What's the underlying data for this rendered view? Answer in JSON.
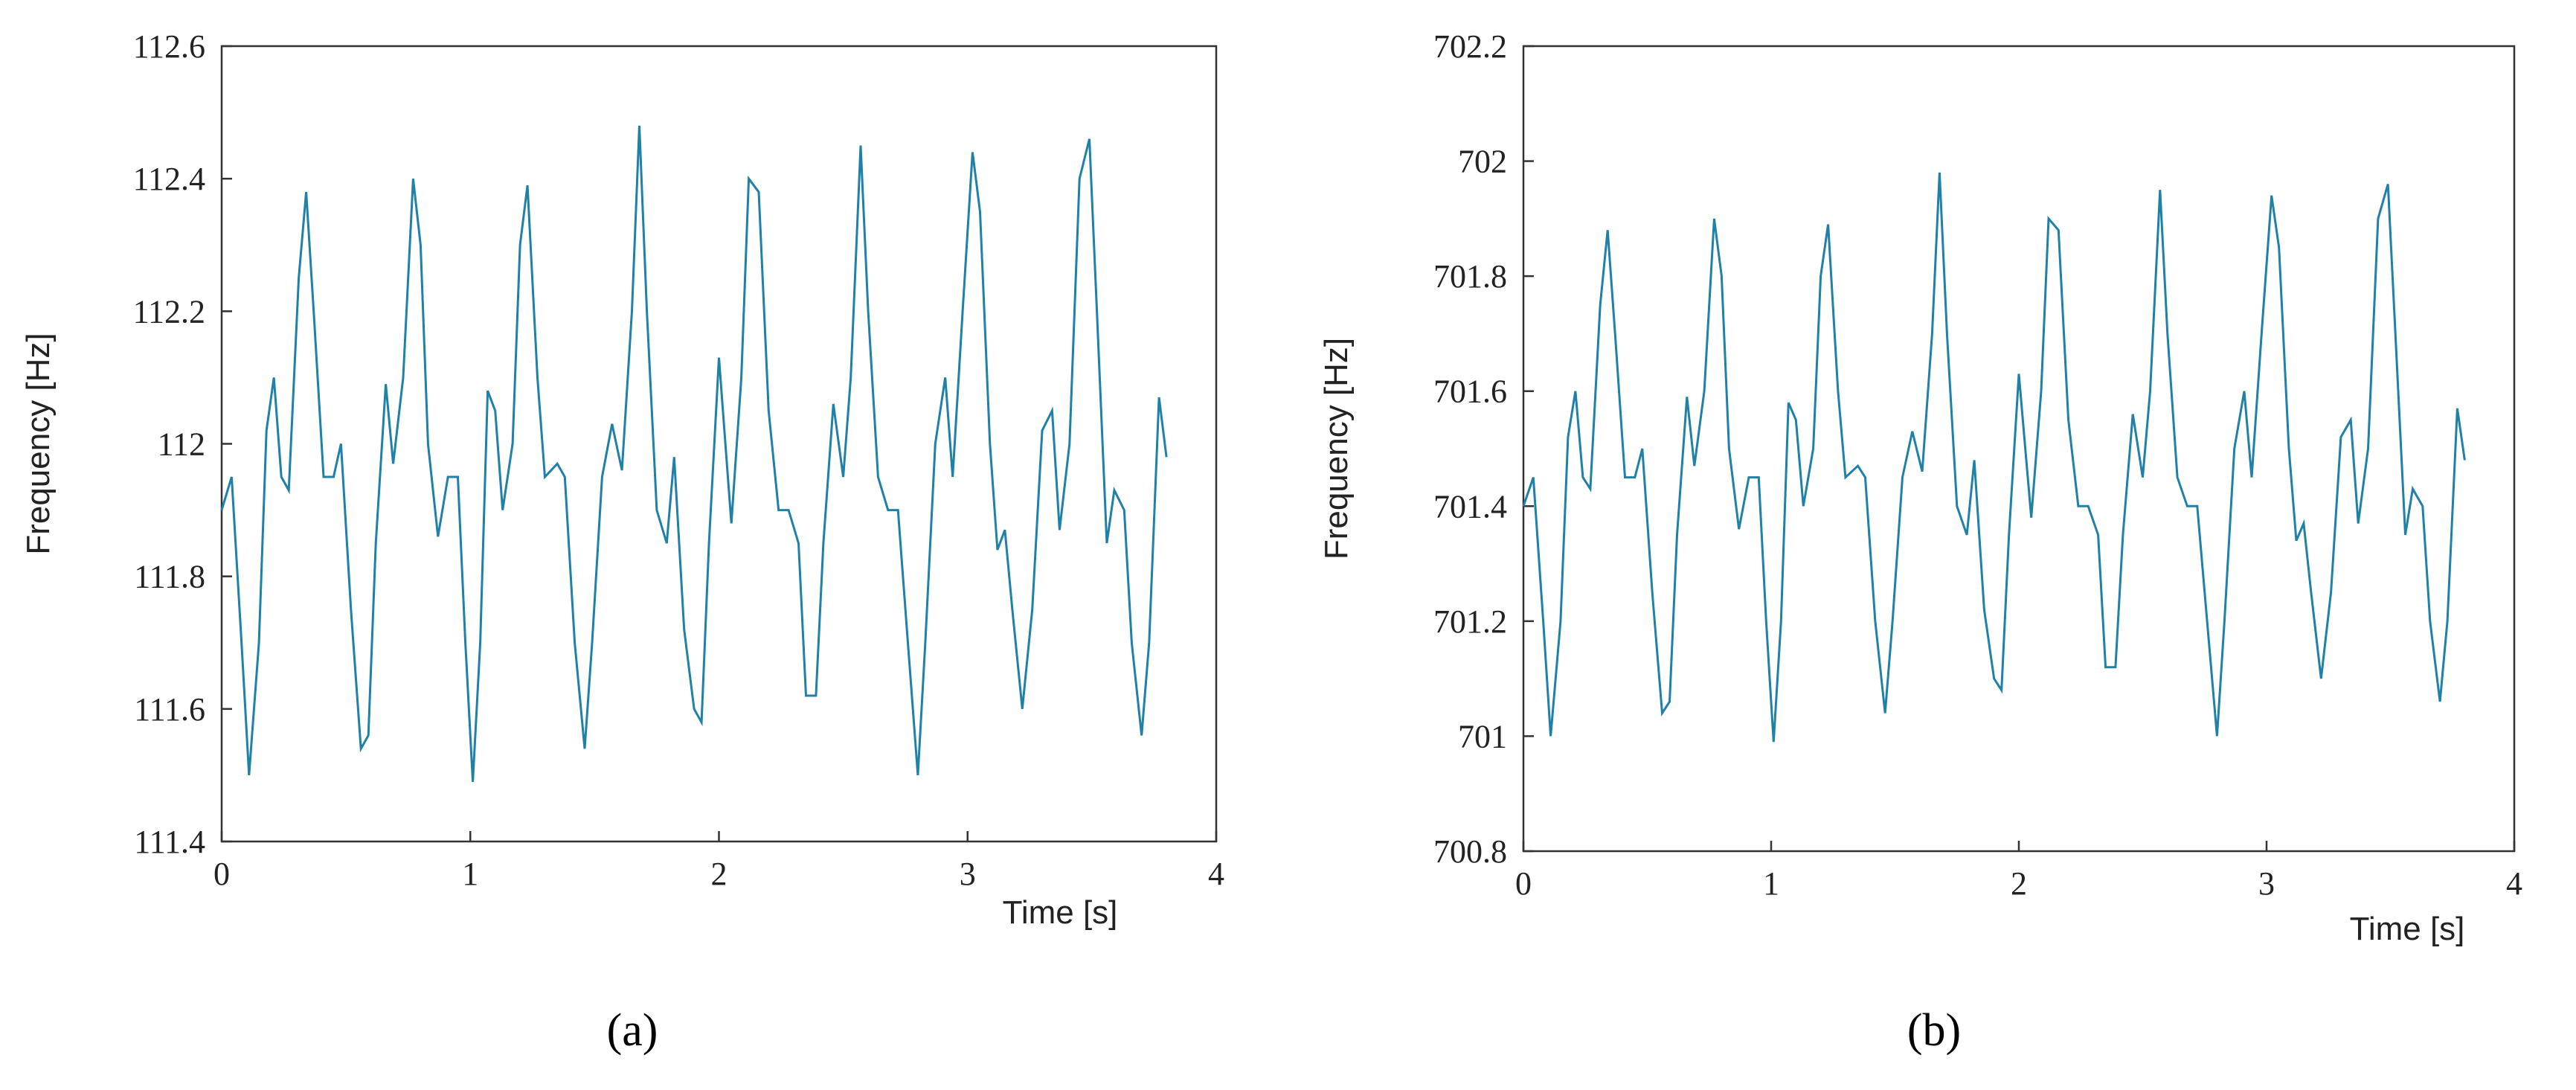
{
  "charts": [
    {
      "chart_data": {
        "type": "line",
        "caption": "(a)",
        "x_label": "Time [s]",
        "y_label": "Frequency [Hz]",
        "xlim": [
          0,
          4
        ],
        "ylim": [
          111.4,
          112.6
        ],
        "xticks": [
          0,
          1,
          2,
          3,
          4
        ],
        "yticks": [
          111.4,
          111.6,
          111.8,
          112,
          112.2,
          112.4,
          112.6
        ],
        "x": [
          0,
          0.04,
          0.08,
          0.11,
          0.15,
          0.18,
          0.21,
          0.24,
          0.27,
          0.31,
          0.34,
          0.37,
          0.41,
          0.45,
          0.48,
          0.52,
          0.56,
          0.59,
          0.62,
          0.66,
          0.69,
          0.73,
          0.77,
          0.8,
          0.83,
          0.87,
          0.91,
          0.95,
          0.98,
          1.01,
          1.04,
          1.07,
          1.1,
          1.13,
          1.17,
          1.2,
          1.23,
          1.27,
          1.3,
          1.35,
          1.38,
          1.42,
          1.46,
          1.49,
          1.53,
          1.57,
          1.61,
          1.65,
          1.68,
          1.71,
          1.75,
          1.79,
          1.82,
          1.86,
          1.9,
          1.93,
          1.96,
          2.0,
          2.03,
          2.05,
          2.09,
          2.12,
          2.16,
          2.2,
          2.24,
          2.28,
          2.32,
          2.35,
          2.39,
          2.42,
          2.46,
          2.5,
          2.53,
          2.57,
          2.6,
          2.64,
          2.68,
          2.72,
          2.76,
          2.8,
          2.83,
          2.87,
          2.91,
          2.94,
          2.98,
          3.02,
          3.05,
          3.09,
          3.12,
          3.15,
          3.18,
          3.22,
          3.26,
          3.3,
          3.34,
          3.37,
          3.41,
          3.45,
          3.49,
          3.52,
          3.56,
          3.59,
          3.63,
          3.66,
          3.7,
          3.73,
          3.77,
          3.8
        ],
        "series": [
          {
            "color": "#1f80a8",
            "values": [
              111.9,
              111.95,
              111.7,
              111.5,
              111.7,
              112.02,
              112.1,
              111.95,
              111.93,
              112.25,
              112.38,
              112.2,
              111.95,
              111.95,
              112.0,
              111.75,
              111.54,
              111.56,
              111.85,
              112.09,
              111.97,
              112.1,
              112.4,
              112.3,
              112.0,
              111.86,
              111.95,
              111.95,
              111.7,
              111.49,
              111.7,
              112.08,
              112.05,
              111.9,
              112.0,
              112.3,
              112.39,
              112.1,
              111.95,
              111.97,
              111.95,
              111.7,
              111.54,
              111.7,
              111.95,
              112.03,
              111.96,
              112.2,
              112.48,
              112.2,
              111.9,
              111.85,
              111.98,
              111.72,
              111.6,
              111.58,
              111.85,
              112.13,
              111.98,
              111.88,
              112.1,
              112.4,
              112.38,
              112.05,
              111.9,
              111.9,
              111.85,
              111.62,
              111.62,
              111.85,
              112.06,
              111.95,
              112.1,
              112.45,
              112.2,
              111.95,
              111.9,
              111.9,
              111.7,
              111.5,
              111.7,
              112.0,
              112.1,
              111.95,
              112.2,
              112.44,
              112.35,
              112.0,
              111.84,
              111.87,
              111.75,
              111.6,
              111.75,
              112.02,
              112.05,
              111.87,
              112.0,
              112.4,
              112.46,
              112.2,
              111.85,
              111.93,
              111.9,
              111.7,
              111.56,
              111.7,
              112.07,
              111.98
            ]
          }
        ]
      }
    },
    {
      "chart_data": {
        "type": "line",
        "caption": "(b)",
        "x_label": "Time [s]",
        "y_label": "Frequency [Hz]",
        "xlim": [
          0,
          4
        ],
        "ylim": [
          700.8,
          702.2
        ],
        "xticks": [
          0,
          1,
          2,
          3,
          4
        ],
        "yticks": [
          700.8,
          701,
          701.2,
          701.4,
          701.6,
          701.8,
          702,
          702.2
        ],
        "x": [
          0,
          0.04,
          0.08,
          0.11,
          0.15,
          0.18,
          0.21,
          0.24,
          0.27,
          0.31,
          0.34,
          0.37,
          0.41,
          0.45,
          0.48,
          0.52,
          0.56,
          0.59,
          0.62,
          0.66,
          0.69,
          0.73,
          0.77,
          0.8,
          0.83,
          0.87,
          0.91,
          0.95,
          0.98,
          1.01,
          1.04,
          1.07,
          1.1,
          1.13,
          1.17,
          1.2,
          1.23,
          1.27,
          1.3,
          1.35,
          1.38,
          1.42,
          1.46,
          1.49,
          1.53,
          1.57,
          1.61,
          1.65,
          1.68,
          1.71,
          1.75,
          1.79,
          1.82,
          1.86,
          1.9,
          1.93,
          1.96,
          2.0,
          2.03,
          2.05,
          2.09,
          2.12,
          2.16,
          2.2,
          2.24,
          2.28,
          2.32,
          2.35,
          2.39,
          2.42,
          2.46,
          2.5,
          2.53,
          2.57,
          2.6,
          2.64,
          2.68,
          2.72,
          2.76,
          2.8,
          2.83,
          2.87,
          2.91,
          2.94,
          2.98,
          3.02,
          3.05,
          3.09,
          3.12,
          3.15,
          3.18,
          3.22,
          3.26,
          3.3,
          3.34,
          3.37,
          3.41,
          3.45,
          3.49,
          3.52,
          3.56,
          3.59,
          3.63,
          3.66,
          3.7,
          3.73,
          3.77,
          3.8
        ],
        "series": [
          {
            "color": "#1f80a8",
            "values": [
              701.4,
              701.45,
              701.2,
              701.0,
              701.2,
              701.52,
              701.6,
              701.45,
              701.43,
              701.75,
              701.88,
              701.7,
              701.45,
              701.45,
              701.5,
              701.25,
              701.04,
              701.06,
              701.35,
              701.59,
              701.47,
              701.6,
              701.9,
              701.8,
              701.5,
              701.36,
              701.45,
              701.45,
              701.2,
              700.99,
              701.2,
              701.58,
              701.55,
              701.4,
              701.5,
              701.8,
              701.89,
              701.6,
              701.45,
              701.47,
              701.45,
              701.2,
              701.04,
              701.2,
              701.45,
              701.53,
              701.46,
              701.7,
              701.98,
              701.7,
              701.4,
              701.35,
              701.48,
              701.22,
              701.1,
              701.08,
              701.35,
              701.63,
              701.48,
              701.38,
              701.6,
              701.9,
              701.88,
              701.55,
              701.4,
              701.4,
              701.35,
              701.12,
              701.12,
              701.35,
              701.56,
              701.45,
              701.6,
              701.95,
              701.7,
              701.45,
              701.4,
              701.4,
              701.2,
              701.0,
              701.2,
              701.5,
              701.6,
              701.45,
              701.7,
              701.94,
              701.85,
              701.5,
              701.34,
              701.37,
              701.25,
              701.1,
              701.25,
              701.52,
              701.55,
              701.37,
              701.5,
              701.9,
              701.96,
              701.7,
              701.35,
              701.43,
              701.4,
              701.2,
              701.06,
              701.2,
              701.57,
              701.48
            ]
          }
        ]
      }
    }
  ]
}
